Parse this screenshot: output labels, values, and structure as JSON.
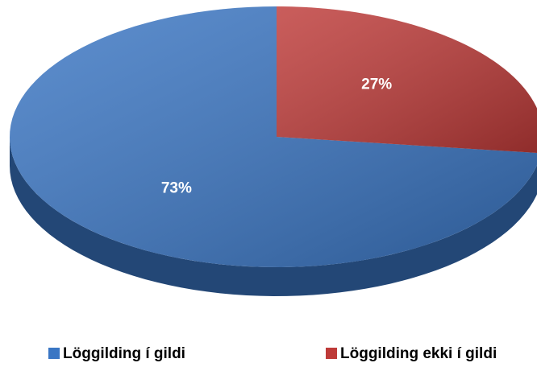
{
  "chart_data": {
    "type": "pie",
    "categories": [
      "Löggilding í gildi",
      "Löggilding ekki í gildi"
    ],
    "values": [
      73,
      27
    ],
    "value_labels": [
      "73%",
      "27%"
    ],
    "colors": [
      "#3a76c4",
      "#be3a38"
    ],
    "legend": "bottom"
  }
}
